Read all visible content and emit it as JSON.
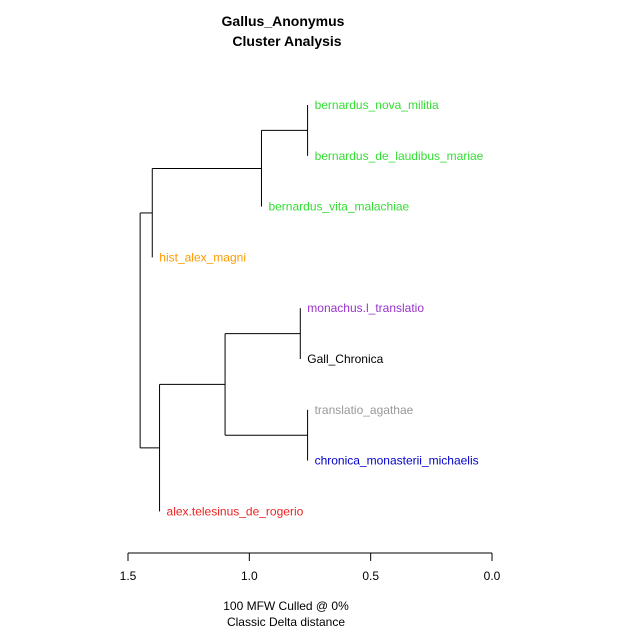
{
  "chart_data": {
    "type": "dendrogram",
    "title": "Gallus_Anonymus",
    "subtitle": "Cluster Analysis",
    "xlabel": "100 MFW  Culled @ 0%",
    "xlabel2": "Classic Delta distance",
    "xlim": [
      1.5,
      0.0
    ],
    "ticks": [
      1.5,
      1.0,
      0.5,
      0.0
    ],
    "tick_labels": [
      "1.5",
      "1.0",
      "0.5",
      "0.0"
    ],
    "leaves": [
      {
        "label": "bernardus_nova_militia",
        "color": "#33dd33"
      },
      {
        "label": "bernardus_de_laudibus_mariae",
        "color": "#33dd33"
      },
      {
        "label": "bernardus_vita_malachiae",
        "color": "#33dd33"
      },
      {
        "label": "hist_alex_magni",
        "color": "#ff9900"
      },
      {
        "label": "monachus.l_translatio",
        "color": "#9933cc"
      },
      {
        "label": "Gall_Chronica",
        "color": "#000000"
      },
      {
        "label": "translatio_agathae",
        "color": "#999999"
      },
      {
        "label": "chronica_monasterii_michaelis",
        "color": "#0000cc"
      },
      {
        "label": "alex.telesinus_de_rogerio",
        "color": "#ee2222"
      }
    ],
    "merges": [
      {
        "children": [
          "L0",
          "L1"
        ],
        "height": 0.76
      },
      {
        "children": [
          "M0",
          "L2"
        ],
        "height": 0.95
      },
      {
        "children": [
          "M1",
          "L3"
        ],
        "height": 1.4
      },
      {
        "children": [
          "L4",
          "L5"
        ],
        "height": 0.79
      },
      {
        "children": [
          "L6",
          "L7"
        ],
        "height": 0.76
      },
      {
        "children": [
          "M3",
          "M4"
        ],
        "height": 1.1
      },
      {
        "children": [
          "M5",
          "L8"
        ],
        "height": 1.37
      },
      {
        "children": [
          "M2",
          "M6"
        ],
        "height": 1.45
      }
    ]
  }
}
